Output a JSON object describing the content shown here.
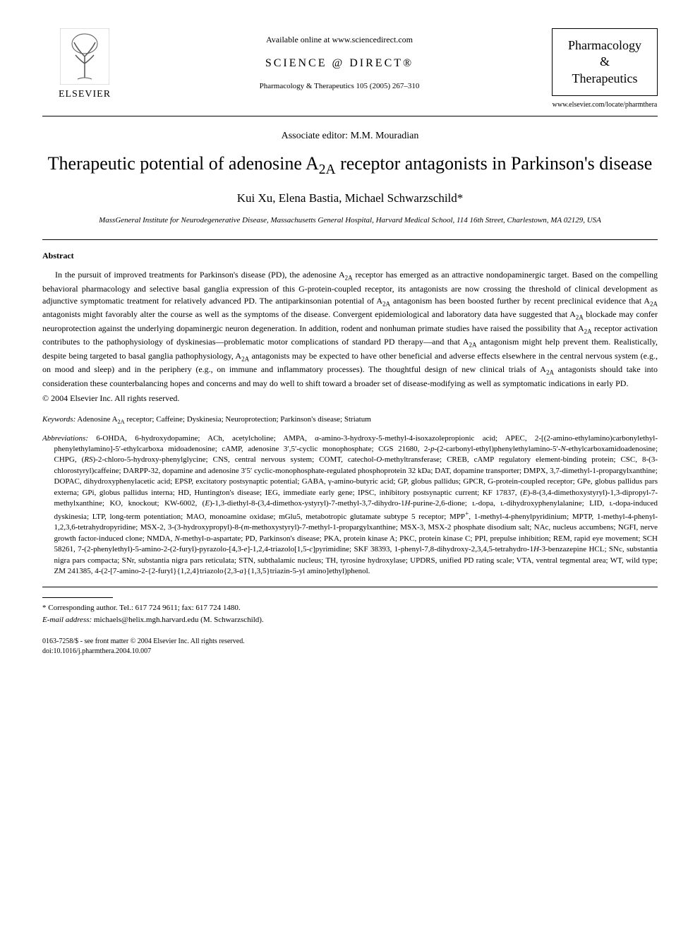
{
  "header": {
    "elsevier_label": "ELSEVIER",
    "available_online": "Available online at www.sciencedirect.com",
    "sciencedirect": "SCIENCE @ DIRECT®",
    "journal_ref": "Pharmacology & Therapeutics 105 (2005) 267–310",
    "journal_name_line1": "Pharmacology",
    "journal_name_line2": "&",
    "journal_name_line3": "Therapeutics",
    "journal_url": "www.elsevier.com/locate/pharmthera"
  },
  "meta": {
    "associate_editor": "Associate editor: M.M. Mouradian",
    "title_html": "Therapeutic potential of adenosine A<sub>2A</sub> receptor antagonists in Parkinson's disease",
    "authors": "Kui Xu, Elena Bastia, Michael Schwarzschild*",
    "affiliation": "MassGeneral Institute for Neurodegenerative Disease, Massachusetts General Hospital, Harvard Medical School, 114 16th Street, Charlestown, MA 02129, USA"
  },
  "abstract": {
    "heading": "Abstract",
    "body_html": "In the pursuit of improved treatments for Parkinson's disease (PD), the adenosine A<sub>2A</sub> receptor has emerged as an attractive nondopaminergic target. Based on the compelling behavioral pharmacology and selective basal ganglia expression of this G-protein-coupled receptor, its antagonists are now crossing the threshold of clinical development as adjunctive symptomatic treatment for relatively advanced PD. The antiparkinsonian potential of A<sub>2A</sub> antagonism has been boosted further by recent preclinical evidence that A<sub>2A</sub> antagonists might favorably alter the course as well as the symptoms of the disease. Convergent epidemiological and laboratory data have suggested that A<sub>2A</sub> blockade may confer neuroprotection against the underlying dopaminergic neuron degeneration. In addition, rodent and nonhuman primate studies have raised the possibility that A<sub>2A</sub> receptor activation contributes to the pathophysiology of dyskinesias—problematic motor complications of standard PD therapy—and that A<sub>2A</sub> antagonism might help prevent them. Realistically, despite being targeted to basal ganglia pathophysiology, A<sub>2A</sub> antagonists may be expected to have other beneficial and adverse effects elsewhere in the central nervous system (e.g., on mood and sleep) and in the periphery (e.g., on immune and inflammatory processes). The thoughtful design of new clinical trials of A<sub>2A</sub> antagonists should take into consideration these counterbalancing hopes and concerns and may do well to shift toward a broader set of disease-modifying as well as symptomatic indications in early PD.",
    "copyright": "© 2004 Elsevier Inc. All rights reserved."
  },
  "keywords": {
    "label": "Keywords:",
    "text_html": " Adenosine A<sub>2A</sub> receptor; Caffeine; Dyskinesia; Neuroprotection; Parkinson's disease; Striatum"
  },
  "abbreviations": {
    "label": "Abbreviations:",
    "text_html": " 6-OHDA, 6-hydroxydopamine; ACh, acetylcholine; AMPA, α-amino-3-hydroxy-5-methyl-4-isoxazolepropionic acid; APEC, 2-[(2-amino-ethylamino)carbonylethyl-phenylethylamino]-5′-ethylcarboxa midoadenosine; cAMP, adenosine 3′,5′-cyclic monophosphate; CGS 21680, 2-<i>p</i>-(2-carbonyl-ethyl)phenylethylamino-5′-<i>N</i>-ethylcarboxamidoadenosine; CHPG, (<i>RS</i>)-2-chloro-5-hydroxy-phenylglycine; CNS, central nervous system; COMT, catechol-<i>O</i>-methyltransferase; CREB, cAMP regulatory element-binding protein; CSC, 8-(3-chlorostyryl)caffeine; DARPP-32, dopamine and adenosine 3′5′ cyclic-monophosphate-regulated phosphoprotein 32 kDa; DAT, dopamine transporter; DMPX, 3,7-dimethyl-1-propargylxanthine; DOPAC, dihydroxyphenylacetic acid; EPSP, excitatory postsynaptic potential; GABA, γ-amino-butyric acid; GP, globus pallidus; GPCR, G-protein-coupled receptor; GPe, globus pallidus pars externa; GPi, globus pallidus interna; HD, Huntington's disease; IEG, immediate early gene; IPSC, inhibitory postsynaptic current; KF 17837, (<i>E</i>)-8-(3,4-dimethoxystyryl)-1,3-dipropyl-7-methylxanthine; KO, knockout; KW-6002, (<i>E</i>)-1,3-diethyl-8-(3,4-dimethox-ystyryl)-7-methyl-3,7-dihydro-1<i>H</i>-purine-2,6-dione; ʟ-dopa, ʟ-dihydroxyphenylalanine; LID, ʟ-dopa-induced dyskinesia; LTP, long-term potentiation; MAO, monoamine oxidase; mGlu5, metabotropic glutamate subtype 5 receptor; MPP<sup>+</sup>, 1-methyl-4-phenylpyridinium; MPTP, 1-methyl-4-phenyl-1,2,3,6-tetrahydropyridine; MSX-2, 3-(3-hydroxypropyl)-8-(<i>m</i>-methoxystyryl)-7-methyl-1-propargylxanthine; MSX-3, MSX-2 phosphate disodium salt; NAc, nucleus accumbens; NGFI, nerve growth factor-induced clone; NMDA, <i>N</i>-methyl-ᴅ-aspartate; PD, Parkinson's disease; PKA, protein kinase A; PKC, protein kinase C; PPI, prepulse inhibition; REM, rapid eye movement; SCH 58261, 7-(2-phenylethyl)-5-amino-2-(2-furyl)-pyrazolo-[4,3-<i>e</i>]-1,2,4-triazolo[1,5-<i>c</i>]pyrimidine; SKF 38393, 1-phenyl-7,8-dihydroxy-2,3,4,5-tetrahydro-1<i>H</i>-3-benzazepine HCL; SNc, substantia nigra pars compacta; SNr, substantia nigra pars reticulata; STN, subthalamic nucleus; TH, tyrosine hydroxylase; UPDRS, unified PD rating scale; VTA, ventral tegmental area; WT, wild type; ZM 241385, 4-(2-[7-amino-2-{2-furyl}{1,2,4}triazolo{2,3-<i>a</i>}{1,3,5}triazin-5-yl amino]ethyl)phenol."
  },
  "footer": {
    "corresponding": "* Corresponding author. Tel.: 617 724 9611; fax: 617 724 1480.",
    "email_label": "E-mail address:",
    "email": " michaels@helix.mgh.harvard.edu (M. Schwarzschild).",
    "issn_line": "0163-7258/$ - see front matter © 2004 Elsevier Inc. All rights reserved.",
    "doi_line": "doi:10.1016/j.pharmthera.2004.10.007"
  },
  "colors": {
    "text": "#000000",
    "background": "#ffffff",
    "rule": "#000000"
  }
}
